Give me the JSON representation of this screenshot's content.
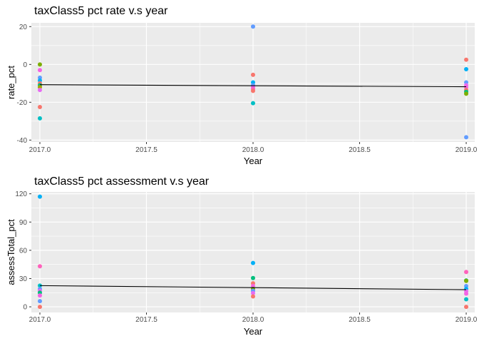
{
  "chart_data": [
    {
      "type": "scatter",
      "title": "taxClass5 pct rate v.s year",
      "xlabel": "Year",
      "ylabel": "rate_pct",
      "xlim": [
        2016.96,
        2019.04
      ],
      "ylim": [
        -41,
        22
      ],
      "x_ticks": [
        "2017.0",
        "2017.5",
        "2018.0",
        "2018.5",
        "2019.0"
      ],
      "y_ticks": [
        "20",
        "0",
        "-20",
        "-40"
      ],
      "grid": true,
      "legend": "none",
      "points": [
        {
          "x": 2017,
          "y": 0,
          "color": "#7CAE00"
        },
        {
          "x": 2017,
          "y": -3,
          "color": "#F564E3"
        },
        {
          "x": 2017,
          "y": -7,
          "color": "#619CFF"
        },
        {
          "x": 2017,
          "y": -8.5,
          "color": "#00B0F6"
        },
        {
          "x": 2017,
          "y": -10,
          "color": "#F8766D"
        },
        {
          "x": 2017,
          "y": -11,
          "color": "#00BF7D"
        },
        {
          "x": 2017,
          "y": -12,
          "color": "#A3A500"
        },
        {
          "x": 2017,
          "y": -13.5,
          "color": "#E76BF3"
        },
        {
          "x": 2017,
          "y": -22.5,
          "color": "#F8766D"
        },
        {
          "x": 2017,
          "y": -28.5,
          "color": "#00BFC4"
        },
        {
          "x": 2018,
          "y": 20,
          "color": "#619CFF"
        },
        {
          "x": 2018,
          "y": -5.5,
          "color": "#F8766D"
        },
        {
          "x": 2018,
          "y": -9.5,
          "color": "#00B0F6"
        },
        {
          "x": 2018,
          "y": -11,
          "color": "#619CFF"
        },
        {
          "x": 2018,
          "y": -12,
          "color": "#E76BF3"
        },
        {
          "x": 2018,
          "y": -13,
          "color": "#FF62BC"
        },
        {
          "x": 2018,
          "y": -14,
          "color": "#F8766D"
        },
        {
          "x": 2018,
          "y": -20.5,
          "color": "#00BFC4"
        },
        {
          "x": 2019,
          "y": 2.5,
          "color": "#F8766D"
        },
        {
          "x": 2019,
          "y": -2.5,
          "color": "#00B0F6"
        },
        {
          "x": 2019,
          "y": -9.5,
          "color": "#619CFF"
        },
        {
          "x": 2019,
          "y": -11,
          "color": "#E76BF3"
        },
        {
          "x": 2019,
          "y": -12,
          "color": "#F564E3"
        },
        {
          "x": 2019,
          "y": -13.5,
          "color": "#F8766D"
        },
        {
          "x": 2019,
          "y": -14.5,
          "color": "#00BF7D"
        },
        {
          "x": 2019,
          "y": -15.5,
          "color": "#7CAE00"
        },
        {
          "x": 2019,
          "y": -38.5,
          "color": "#619CFF"
        }
      ],
      "trend_line": {
        "x": [
          2017,
          2019
        ],
        "y": [
          -10.7,
          -11.8
        ],
        "color": "#000000"
      }
    },
    {
      "type": "scatter",
      "title": "taxClass5 pct assessment v.s year",
      "xlabel": "Year",
      "ylabel": "assessTotal_pct",
      "xlim": [
        2016.96,
        2019.04
      ],
      "ylim": [
        -6,
        122
      ],
      "x_ticks": [
        "2017.0",
        "2017.5",
        "2018.0",
        "2018.5",
        "2019.0"
      ],
      "y_ticks": [
        "120",
        "90",
        "60",
        "30",
        "0"
      ],
      "grid": true,
      "legend": "none",
      "points": [
        {
          "x": 2017,
          "y": 117,
          "color": "#00B0F6"
        },
        {
          "x": 2017,
          "y": 43,
          "color": "#FF62BC"
        },
        {
          "x": 2017,
          "y": 22.5,
          "color": "#00BFC4"
        },
        {
          "x": 2017,
          "y": 19,
          "color": "#619CFF"
        },
        {
          "x": 2017,
          "y": 17,
          "color": "#E76BF3"
        },
        {
          "x": 2017,
          "y": 15,
          "color": "#00BF7D"
        },
        {
          "x": 2017,
          "y": 12,
          "color": "#F564E3"
        },
        {
          "x": 2017,
          "y": 6,
          "color": "#619CFF"
        },
        {
          "x": 2017,
          "y": 0,
          "color": "#F8766D"
        },
        {
          "x": 2018,
          "y": 46.5,
          "color": "#00B0F6"
        },
        {
          "x": 2018,
          "y": 30.5,
          "color": "#00BF7D"
        },
        {
          "x": 2018,
          "y": 25,
          "color": "#F8766D"
        },
        {
          "x": 2018,
          "y": 22,
          "color": "#F564E3"
        },
        {
          "x": 2018,
          "y": 19,
          "color": "#7CAE00"
        },
        {
          "x": 2018,
          "y": 17,
          "color": "#619CFF"
        },
        {
          "x": 2018,
          "y": 14.5,
          "color": "#E76BF3"
        },
        {
          "x": 2018,
          "y": 11,
          "color": "#F8766D"
        },
        {
          "x": 2019,
          "y": 37,
          "color": "#FF62BC"
        },
        {
          "x": 2019,
          "y": 28,
          "color": "#00BF7D"
        },
        {
          "x": 2019,
          "y": 27.5,
          "color": "#7CAE00"
        },
        {
          "x": 2019,
          "y": 22,
          "color": "#619CFF"
        },
        {
          "x": 2019,
          "y": 19,
          "color": "#00B0F6"
        },
        {
          "x": 2019,
          "y": 16.5,
          "color": "#E76BF3"
        },
        {
          "x": 2019,
          "y": 14,
          "color": "#F564E3"
        },
        {
          "x": 2019,
          "y": 8,
          "color": "#00BFC4"
        },
        {
          "x": 2019,
          "y": 0,
          "color": "#F8766D"
        }
      ],
      "trend_line": {
        "x": [
          2017,
          2019
        ],
        "y": [
          22.5,
          18.2
        ],
        "color": "#000000"
      }
    }
  ]
}
